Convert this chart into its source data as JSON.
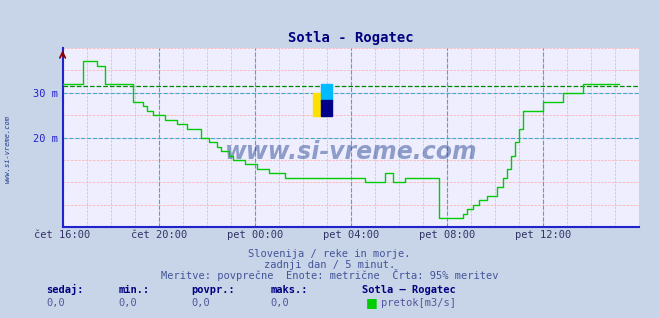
{
  "title": "Sotla - Rogatec",
  "title_color": "#000080",
  "bg_color": "#c8d4e8",
  "plot_bg_color": "#eeeeff",
  "axis_color": "#2222cc",
  "ytick_positions": [
    20,
    30
  ],
  "ytick_labels": [
    "20 m",
    "30 m"
  ],
  "ymin": 0,
  "ymax": 40,
  "xtick_labels": [
    "čet 16:00",
    "čet 20:00",
    "pet 00:00",
    "pet 04:00",
    "pet 08:00",
    "pet 12:00"
  ],
  "xtick_positions": [
    0,
    48,
    96,
    144,
    192,
    240
  ],
  "grid_color_pink": "#ffaaaa",
  "grid_color_cyan": "#44aacc",
  "line_color": "#00cc00",
  "avg_line_color": "#008800",
  "avg_value": 31.5,
  "watermark_text": "www.si-vreme.com",
  "watermark_color": "#1a3a8a",
  "watermark_alpha": 0.45,
  "side_text": "www.si-vreme.com",
  "footer_line1": "Slovenija / reke in morje.",
  "footer_line2": "zadnji dan / 5 minut.",
  "footer_line3": "Meritve: povprečne  Enote: metrične  Črta: 95% meritev",
  "footer_color": "#445599",
  "label_sedaj": "sedaj:",
  "label_min": "min.:",
  "label_povpr": "povpr.:",
  "label_maks": "maks.:",
  "val_sedaj": "0,0",
  "val_min": "0,0",
  "val_povpr": "0,0",
  "val_maks": "0,0",
  "legend_title": "Sotla – Rogatec",
  "legend_label": "pretok[m3/s]",
  "data_y": [
    32,
    32,
    32,
    32,
    32,
    32,
    32,
    32,
    32,
    32,
    37,
    37,
    37,
    37,
    37,
    37,
    37,
    36,
    36,
    36,
    36,
    32,
    32,
    32,
    32,
    32,
    32,
    32,
    32,
    32,
    32,
    32,
    32,
    32,
    32,
    28,
    28,
    28,
    28,
    28,
    27,
    27,
    26,
    26,
    26,
    25,
    25,
    25,
    25,
    25,
    25,
    24,
    24,
    24,
    24,
    24,
    24,
    23,
    23,
    23,
    23,
    23,
    22,
    22,
    22,
    22,
    22,
    22,
    22,
    20,
    20,
    20,
    20,
    19,
    19,
    19,
    19,
    18,
    18,
    17,
    17,
    17,
    17,
    16,
    16,
    15,
    15,
    15,
    15,
    15,
    15,
    14,
    14,
    14,
    14,
    14,
    14,
    13,
    13,
    13,
    13,
    13,
    13,
    12,
    12,
    12,
    12,
    12,
    12,
    12,
    12,
    11,
    11,
    11,
    11,
    11,
    11,
    11,
    11,
    11,
    11,
    11,
    11,
    11,
    11,
    11,
    11,
    11,
    11,
    11,
    11,
    11,
    11,
    11,
    11,
    11,
    11,
    11,
    11,
    11,
    11,
    11,
    11,
    11,
    11,
    11,
    11,
    11,
    11,
    11,
    11,
    10,
    10,
    10,
    10,
    10,
    10,
    10,
    10,
    10,
    10,
    12,
    12,
    12,
    12,
    10,
    10,
    10,
    10,
    10,
    10,
    11,
    11,
    11,
    11,
    11,
    11,
    11,
    11,
    11,
    11,
    11,
    11,
    11,
    11,
    11,
    11,
    11,
    2,
    2,
    2,
    2,
    2,
    2,
    2,
    2,
    2,
    2,
    2,
    2,
    3,
    3,
    4,
    4,
    4,
    5,
    5,
    5,
    6,
    6,
    6,
    6,
    7,
    7,
    7,
    7,
    7,
    9,
    9,
    9,
    11,
    11,
    13,
    13,
    16,
    16,
    19,
    19,
    22,
    22,
    26,
    26,
    26,
    26,
    26,
    26,
    26,
    26,
    26,
    26,
    28,
    28,
    28,
    28,
    28,
    28,
    28,
    28,
    28,
    28,
    30,
    30,
    30,
    30,
    30,
    30,
    30,
    30,
    30,
    30,
    32,
    32,
    32,
    32,
    32,
    32,
    32,
    32,
    32,
    32,
    32,
    32,
    32,
    32,
    32,
    32,
    32,
    32,
    32
  ]
}
